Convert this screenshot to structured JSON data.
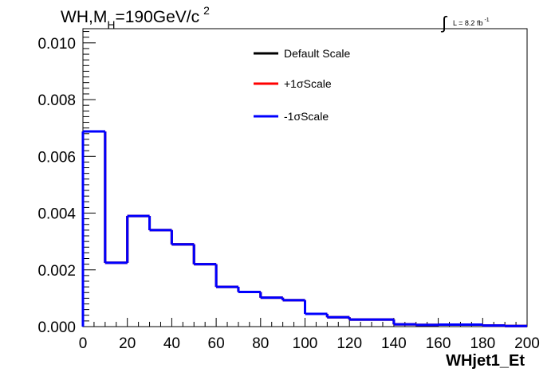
{
  "chart_data": {
    "type": "line",
    "title_prefix": "WH,M",
    "title_subscript": "H",
    "title_suffix": "=190GeV/c",
    "title_superscript": "2",
    "lumi_label": "L = 8.2 fb",
    "lumi_superscript": "-1",
    "xlabel": "WHjet1_Et",
    "ylabel": "",
    "xlim": [
      0,
      200
    ],
    "ylim": [
      0,
      0.0105
    ],
    "x_ticks": [
      "0",
      "20",
      "40",
      "60",
      "80",
      "100",
      "120",
      "140",
      "160",
      "180",
      "200"
    ],
    "y_ticks": [
      "0.000",
      "0.002",
      "0.004",
      "0.006",
      "0.008",
      "0.010"
    ],
    "bin_edges": [
      0,
      10,
      20,
      30,
      40,
      50,
      60,
      70,
      80,
      90,
      100,
      110,
      120,
      130,
      140,
      150,
      160,
      170,
      180,
      190,
      200
    ],
    "series": [
      {
        "name": "Default Scale",
        "color": "#000000",
        "values": [
          0.00688,
          0.00225,
          0.0039,
          0.0034,
          0.0029,
          0.0022,
          0.0014,
          0.00122,
          0.00102,
          0.00093,
          0.00045,
          0.00033,
          0.00025,
          0.00025,
          8e-05,
          6e-05,
          7e-05,
          7e-05,
          4e-05,
          2e-05
        ]
      },
      {
        "name": "+1σScale",
        "color": "#ff0000",
        "values": [
          0.00688,
          0.00225,
          0.0039,
          0.0034,
          0.0029,
          0.0022,
          0.0014,
          0.00122,
          0.00102,
          0.00093,
          0.00045,
          0.00033,
          0.00025,
          0.00025,
          8e-05,
          6e-05,
          7e-05,
          7e-05,
          4e-05,
          2e-05
        ]
      },
      {
        "name": "-1σScale",
        "color": "#0000ff",
        "values": [
          0.00688,
          0.00225,
          0.0039,
          0.0034,
          0.0029,
          0.0022,
          0.0014,
          0.00122,
          0.00102,
          0.00093,
          0.00045,
          0.00033,
          0.00025,
          0.00025,
          8e-05,
          6e-05,
          7e-05,
          7e-05,
          4e-05,
          2e-05
        ]
      }
    ],
    "legend_position": "top-right",
    "grid": false
  }
}
